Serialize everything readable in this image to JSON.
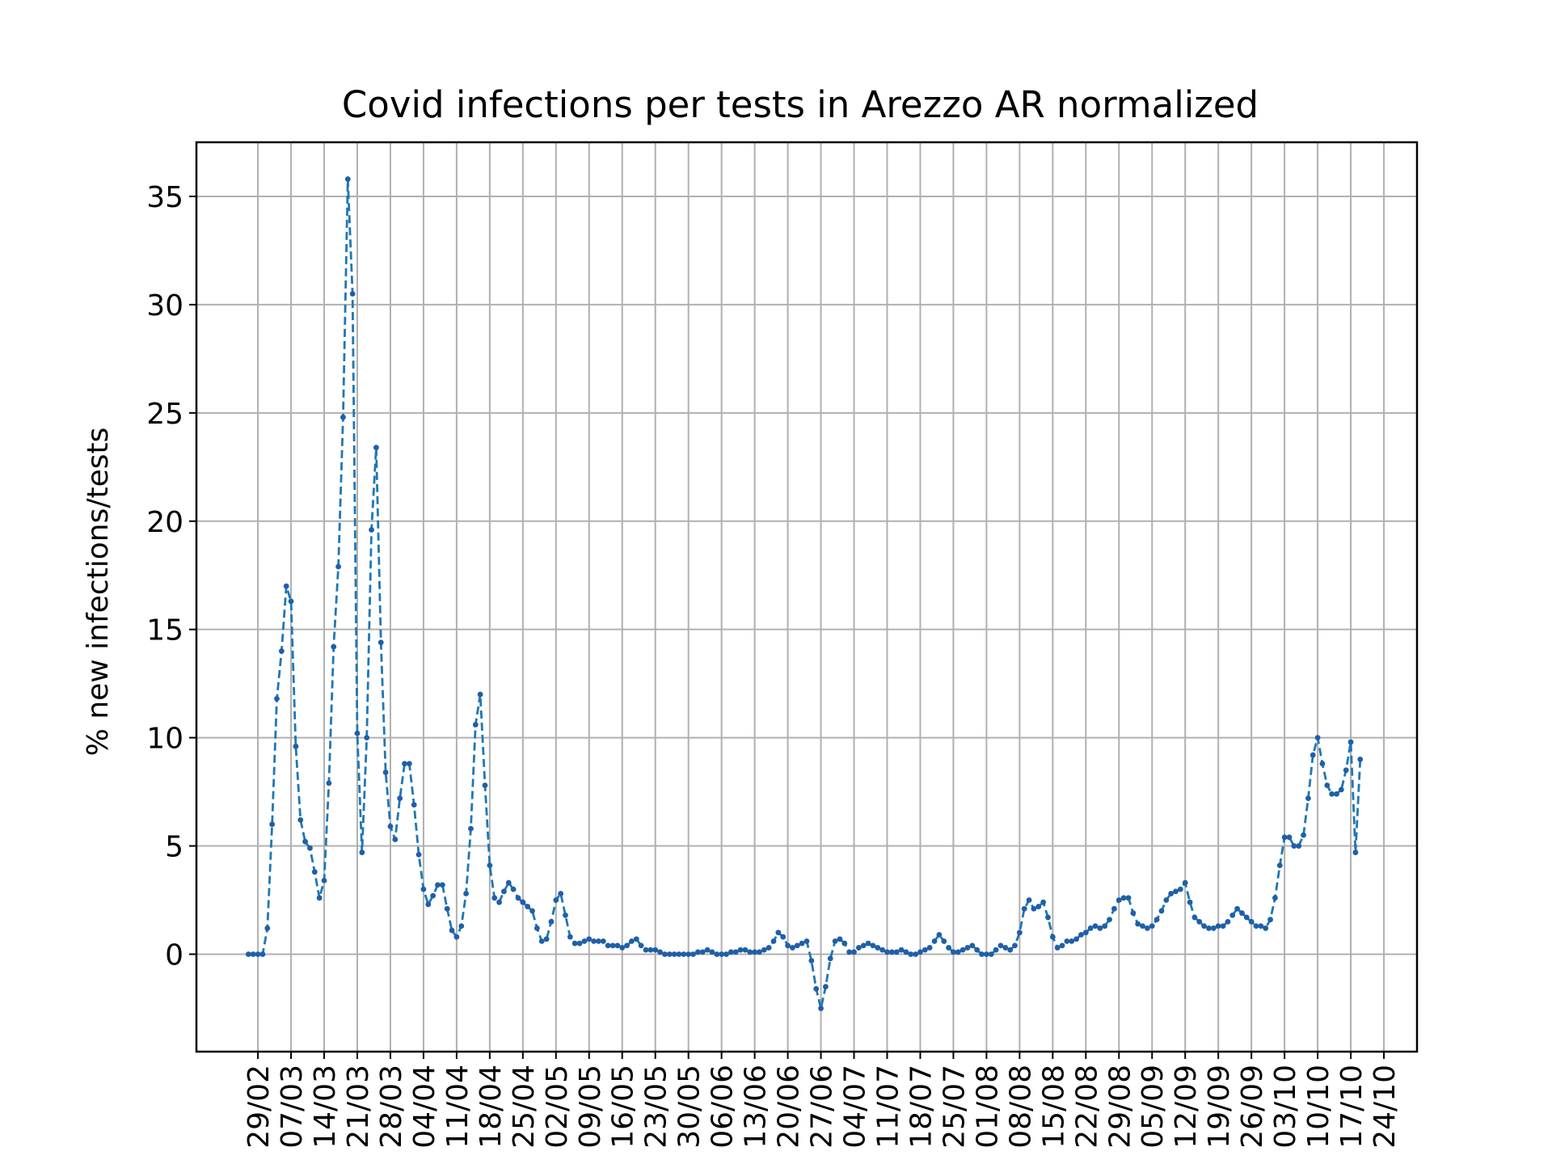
{
  "chart_data": {
    "type": "line",
    "title": "Covid infections per tests in Arezzo AR normalized",
    "xlabel": "",
    "ylabel": "% new infections/tests",
    "ylim": [
      -4.5,
      37.5
    ],
    "yticks": [
      0,
      5,
      10,
      15,
      20,
      25,
      30,
      35
    ],
    "xticks": [
      "29/02",
      "07/03",
      "14/03",
      "21/03",
      "28/03",
      "04/04",
      "11/04",
      "18/04",
      "25/04",
      "02/05",
      "09/05",
      "16/05",
      "23/05",
      "30/05",
      "06/06",
      "13/06",
      "20/06",
      "27/06",
      "04/07",
      "11/07",
      "18/07",
      "25/07",
      "01/08",
      "08/08",
      "15/08",
      "22/08",
      "29/08",
      "05/09",
      "12/09",
      "19/09",
      "26/09",
      "03/10",
      "10/10",
      "17/10",
      "24/10"
    ],
    "grid": true,
    "line_style": "dashed",
    "marker": "dot",
    "colors": {
      "line": "#1f77b4",
      "marker": "#1f5fa8",
      "grid": "#b0b0b0"
    },
    "x_start": "27/02",
    "x_end": "24/10",
    "series": [
      {
        "name": "",
        "values": [
          0.0,
          0.0,
          0.0,
          0.0,
          1.2,
          6.0,
          11.8,
          14.0,
          17.0,
          16.3,
          9.6,
          6.2,
          5.2,
          4.9,
          3.8,
          2.6,
          3.4,
          7.9,
          14.2,
          17.9,
          24.8,
          35.8,
          30.5,
          10.2,
          4.7,
          10.0,
          19.6,
          23.4,
          14.4,
          8.4,
          5.9,
          5.3,
          7.2,
          8.8,
          8.8,
          6.9,
          4.6,
          3.0,
          2.3,
          2.7,
          3.2,
          3.2,
          2.1,
          1.1,
          0.8,
          1.3,
          2.8,
          5.8,
          10.6,
          12.0,
          7.8,
          4.1,
          2.6,
          2.4,
          2.9,
          3.3,
          3.0,
          2.6,
          2.4,
          2.2,
          2.0,
          1.2,
          0.6,
          0.7,
          1.5,
          2.5,
          2.8,
          1.8,
          0.8,
          0.5,
          0.5,
          0.6,
          0.7,
          0.6,
          0.6,
          0.6,
          0.4,
          0.4,
          0.4,
          0.3,
          0.4,
          0.6,
          0.7,
          0.4,
          0.2,
          0.2,
          0.2,
          0.1,
          0.0,
          0.0,
          0.0,
          0.0,
          0.0,
          0.0,
          0.0,
          0.1,
          0.1,
          0.2,
          0.1,
          0.0,
          0.0,
          0.0,
          0.1,
          0.1,
          0.2,
          0.2,
          0.1,
          0.1,
          0.1,
          0.2,
          0.3,
          0.6,
          1.0,
          0.8,
          0.4,
          0.3,
          0.4,
          0.5,
          0.6,
          -0.3,
          -1.6,
          -2.5,
          -1.5,
          -0.2,
          0.6,
          0.7,
          0.5,
          0.1,
          0.1,
          0.3,
          0.4,
          0.5,
          0.4,
          0.3,
          0.2,
          0.1,
          0.1,
          0.1,
          0.2,
          0.1,
          0.0,
          0.0,
          0.1,
          0.2,
          0.3,
          0.6,
          0.9,
          0.6,
          0.3,
          0.1,
          0.1,
          0.2,
          0.3,
          0.4,
          0.2,
          0.0,
          0.0,
          0.0,
          0.2,
          0.4,
          0.3,
          0.2,
          0.4,
          1.0,
          2.1,
          2.5,
          2.1,
          2.2,
          2.4,
          1.7,
          0.8,
          0.3,
          0.4,
          0.6,
          0.6,
          0.7,
          0.9,
          1.0,
          1.2,
          1.3,
          1.2,
          1.3,
          1.6,
          2.1,
          2.5,
          2.6,
          2.6,
          1.9,
          1.4,
          1.3,
          1.2,
          1.3,
          1.6,
          2.0,
          2.5,
          2.8,
          2.9,
          3.0,
          3.3,
          2.4,
          1.7,
          1.5,
          1.3,
          1.2,
          1.2,
          1.3,
          1.3,
          1.5,
          1.8,
          2.1,
          1.9,
          1.7,
          1.5,
          1.3,
          1.3,
          1.2,
          1.6,
          2.6,
          4.1,
          5.4,
          5.4,
          5.0,
          5.0,
          5.5,
          7.2,
          9.2,
          10.0,
          8.8,
          7.8,
          7.4,
          7.4,
          7.6,
          8.5,
          9.8,
          4.7,
          9.0
        ]
      }
    ]
  }
}
